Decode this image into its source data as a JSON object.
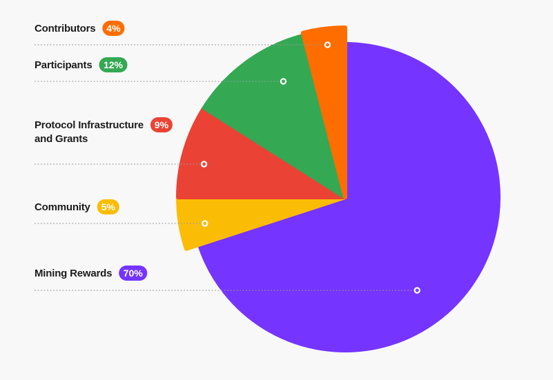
{
  "chart_data": {
    "type": "pie",
    "title": "",
    "legend": "left",
    "slices": [
      {
        "label": "Mining Rewards",
        "label_lines": [
          "Mining Rewards"
        ],
        "value": 70,
        "value_label": "70%",
        "color": "#7534ff"
      },
      {
        "label": "Community",
        "label_lines": [
          "Community"
        ],
        "value": 5,
        "value_label": "5%",
        "color": "#fbbc05"
      },
      {
        "label": "Protocol Infrastructure and Grants",
        "label_lines": [
          "Protocol Infrastructure",
          "and Grants"
        ],
        "value": 9,
        "value_label": "9%",
        "color": "#ea4335"
      },
      {
        "label": "Participants",
        "label_lines": [
          "Participants"
        ],
        "value": 12,
        "value_label": "12%",
        "color": "#34a853"
      },
      {
        "label": "Contributors",
        "label_lines": [
          "Contributors"
        ],
        "value": 4,
        "value_label": "4%",
        "color": "#ff6d01"
      }
    ]
  }
}
